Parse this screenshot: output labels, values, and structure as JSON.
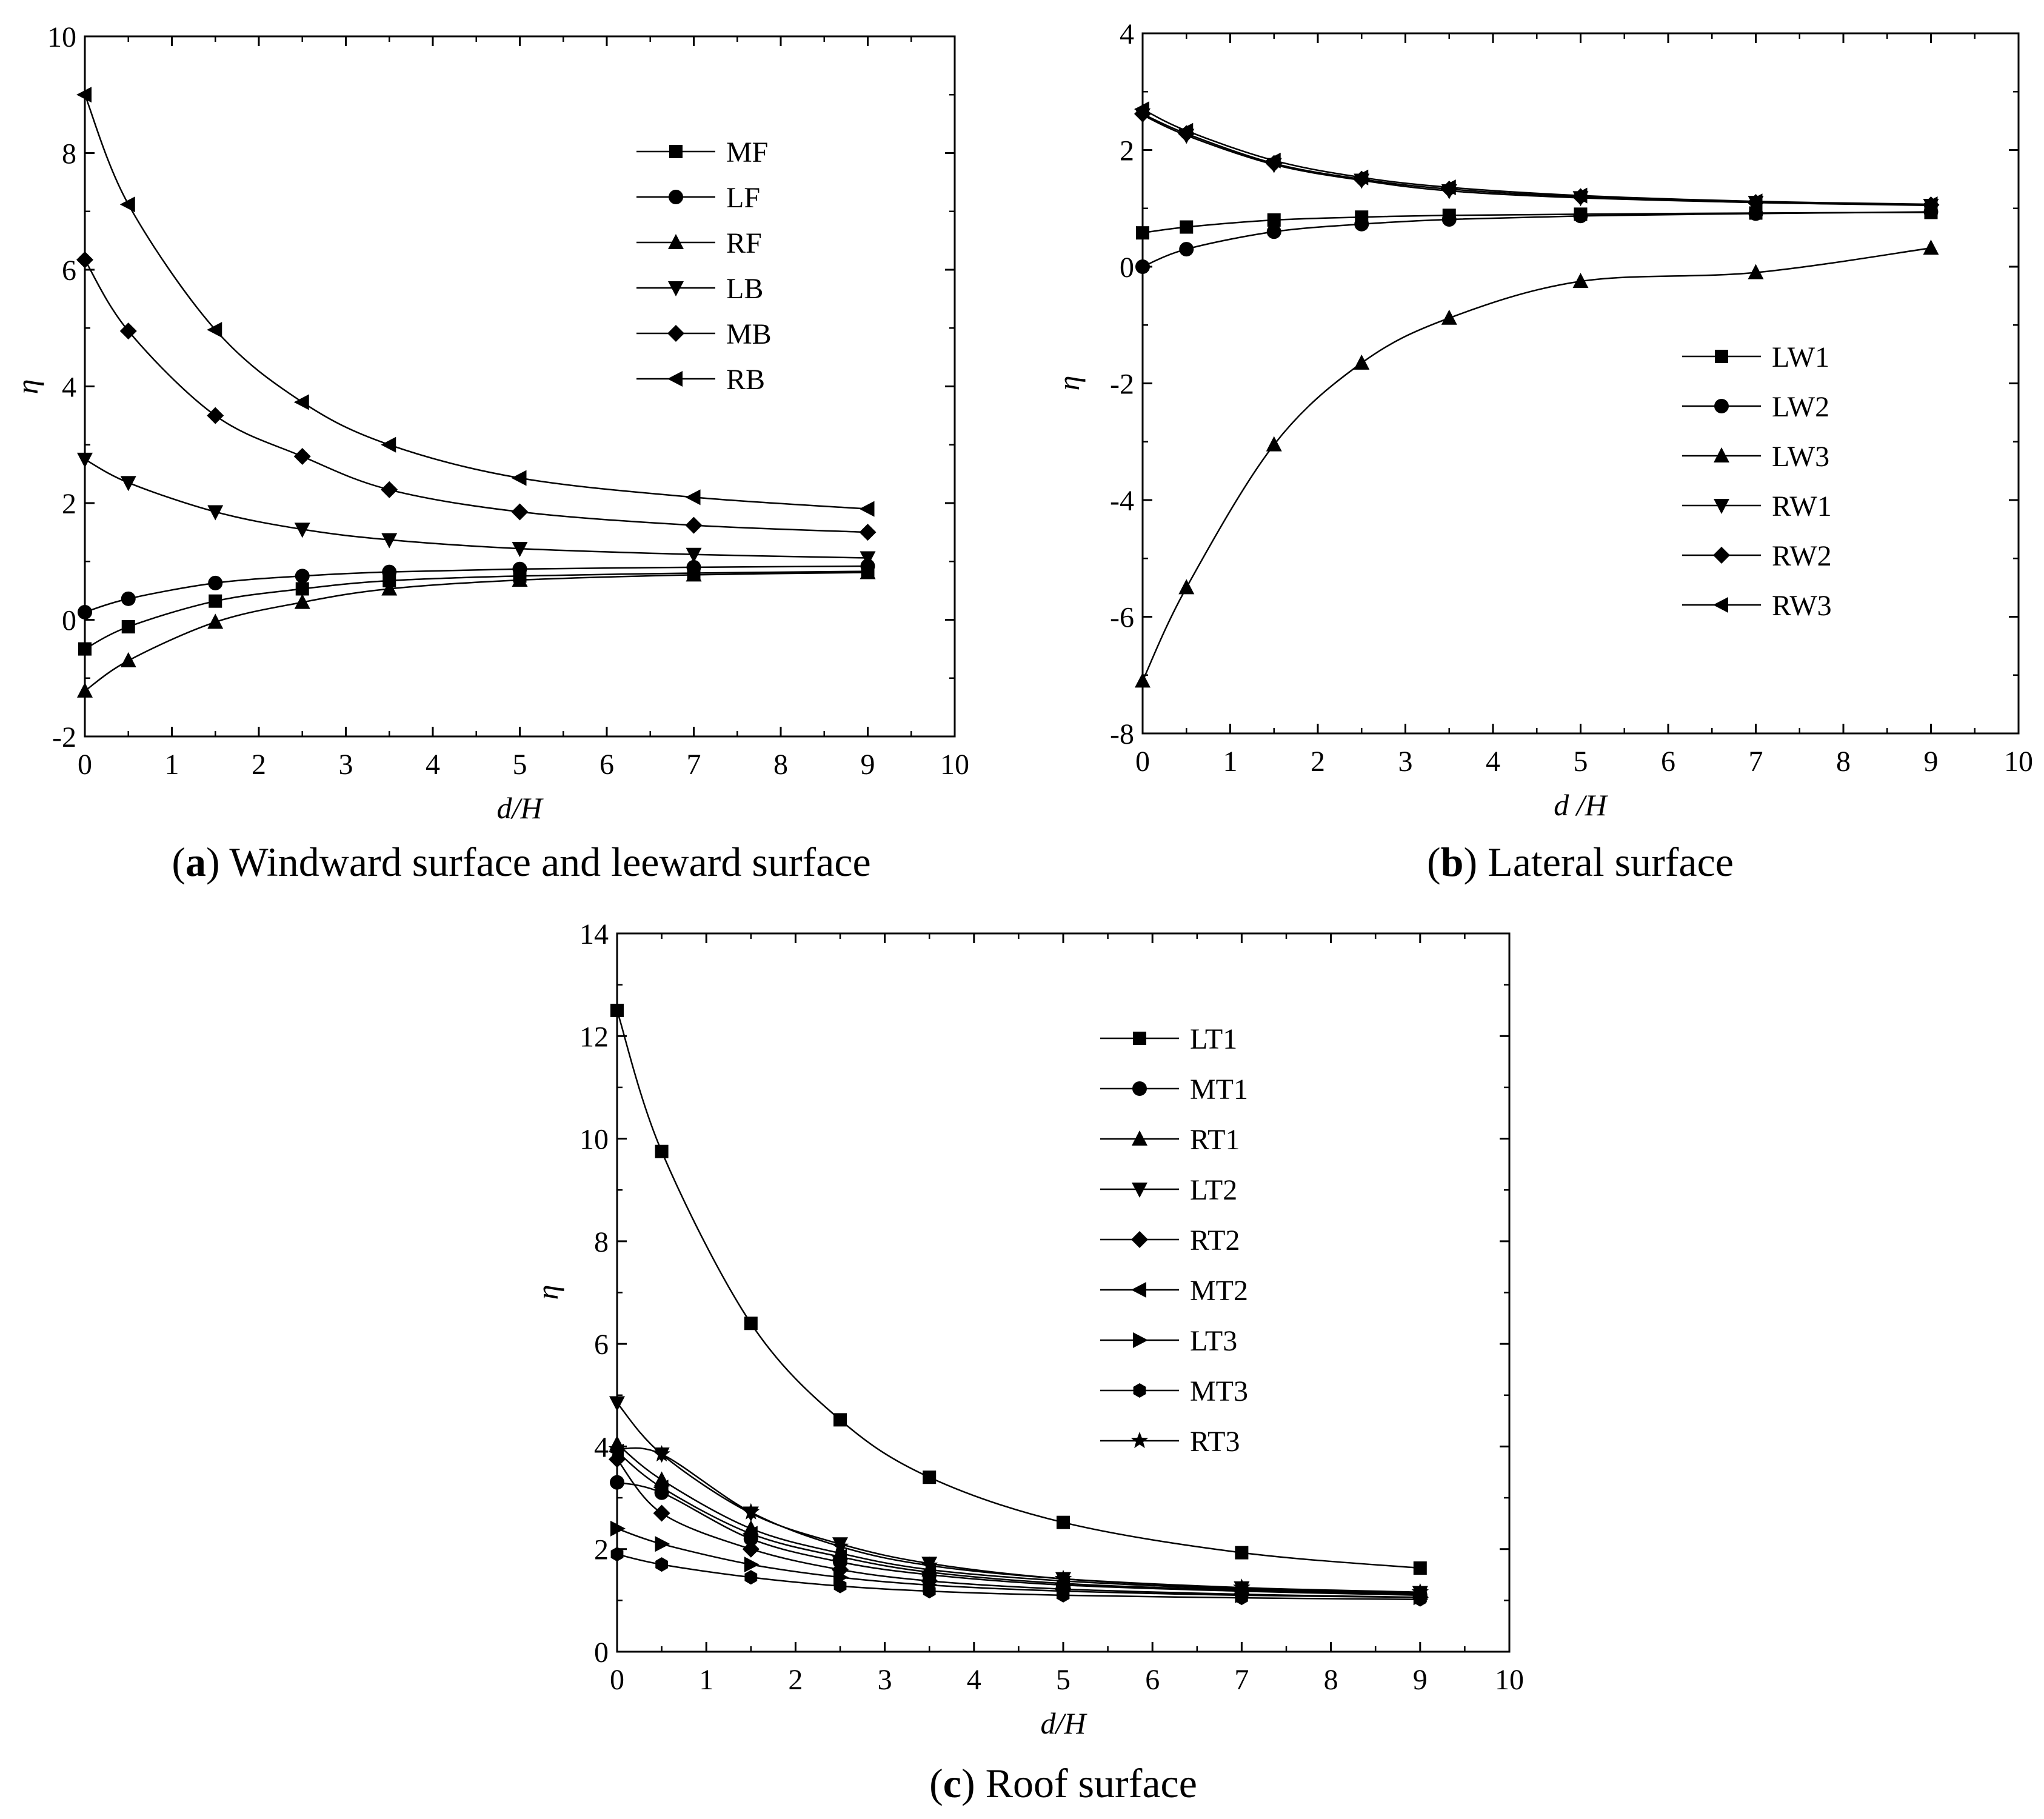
{
  "chart_data": [
    {
      "type": "line",
      "panel": "a",
      "caption_letter": "a",
      "caption_text": "Windward surface and leeward surface",
      "xlabel": "d/H",
      "ylabel": "η",
      "xlim": [
        0,
        10
      ],
      "ylim": [
        -2,
        10
      ],
      "xticks": [
        0,
        1,
        2,
        3,
        4,
        5,
        6,
        7,
        8,
        9,
        10
      ],
      "yticks": [
        -2,
        0,
        2,
        4,
        6,
        8,
        10
      ],
      "legend_position": "top-right",
      "x": [
        0,
        0.5,
        1.5,
        2.5,
        3.5,
        5,
        7,
        9
      ],
      "series": [
        {
          "name": "MF",
          "marker": "square",
          "values": [
            -0.5,
            -0.12,
            0.32,
            0.53,
            0.67,
            0.75,
            0.8,
            0.83
          ]
        },
        {
          "name": "LF",
          "marker": "circle",
          "values": [
            0.13,
            0.36,
            0.63,
            0.75,
            0.82,
            0.87,
            0.9,
            0.92
          ]
        },
        {
          "name": "RF",
          "marker": "triangle-up",
          "values": [
            -1.22,
            -0.7,
            -0.04,
            0.3,
            0.53,
            0.68,
            0.77,
            0.81
          ]
        },
        {
          "name": "LB",
          "marker": "triangle-down",
          "values": [
            2.75,
            2.35,
            1.85,
            1.55,
            1.37,
            1.22,
            1.12,
            1.06
          ]
        },
        {
          "name": "MB",
          "marker": "diamond",
          "values": [
            6.17,
            4.95,
            3.5,
            2.8,
            2.23,
            1.85,
            1.62,
            1.5
          ]
        },
        {
          "name": "RB",
          "marker": "triangle-left",
          "values": [
            9.0,
            7.12,
            4.97,
            3.73,
            3.0,
            2.43,
            2.1,
            1.9
          ]
        }
      ]
    },
    {
      "type": "line",
      "panel": "b",
      "caption_letter": "b",
      "caption_text": "Lateral surface",
      "xlabel": "d /H",
      "ylabel": "η",
      "xlim": [
        0,
        10
      ],
      "ylim": [
        -8,
        4
      ],
      "xticks": [
        0,
        1,
        2,
        3,
        4,
        5,
        6,
        7,
        8,
        9,
        10
      ],
      "yticks": [
        -8,
        -6,
        -4,
        -2,
        0,
        2,
        4
      ],
      "legend_position": "lower-right",
      "x": [
        0,
        0.5,
        1.5,
        2.5,
        3.5,
        5,
        7,
        9
      ],
      "series": [
        {
          "name": "LW1",
          "marker": "square",
          "values": [
            0.58,
            0.68,
            0.8,
            0.85,
            0.88,
            0.9,
            0.92,
            0.93
          ]
        },
        {
          "name": "LW2",
          "marker": "circle",
          "values": [
            0.0,
            0.3,
            0.6,
            0.73,
            0.81,
            0.87,
            0.91,
            0.94
          ]
        },
        {
          "name": "LW3",
          "marker": "triangle-up",
          "values": [
            -7.1,
            -5.5,
            -3.05,
            -1.65,
            -0.88,
            -0.25,
            -0.1,
            0.32
          ]
        },
        {
          "name": "RW1",
          "marker": "triangle-down",
          "values": [
            2.6,
            2.25,
            1.75,
            1.48,
            1.3,
            1.18,
            1.1,
            1.05
          ]
        },
        {
          "name": "RW2",
          "marker": "diamond",
          "values": [
            2.62,
            2.28,
            1.77,
            1.5,
            1.33,
            1.2,
            1.1,
            1.06
          ]
        },
        {
          "name": "RW3",
          "marker": "triangle-left",
          "values": [
            2.7,
            2.33,
            1.82,
            1.53,
            1.36,
            1.22,
            1.12,
            1.07
          ]
        }
      ]
    },
    {
      "type": "line",
      "panel": "c",
      "caption_letter": "c",
      "caption_text": "Roof surface",
      "xlabel": "d/H",
      "ylabel": "η",
      "xlim": [
        0,
        10
      ],
      "ylim": [
        0,
        14
      ],
      "xticks": [
        0,
        1,
        2,
        3,
        4,
        5,
        6,
        7,
        8,
        9,
        10
      ],
      "yticks": [
        0,
        2,
        4,
        6,
        8,
        10,
        12,
        14
      ],
      "legend_position": "top-right",
      "x": [
        0,
        0.5,
        1.5,
        2.5,
        3.5,
        5,
        7,
        9
      ],
      "series": [
        {
          "name": "LT1",
          "marker": "square",
          "values": [
            12.5,
            9.75,
            6.4,
            4.52,
            3.4,
            2.52,
            1.93,
            1.63
          ]
        },
        {
          "name": "MT1",
          "marker": "circle",
          "values": [
            3.3,
            3.1,
            2.2,
            1.75,
            1.5,
            1.3,
            1.18,
            1.1
          ]
        },
        {
          "name": "RT1",
          "marker": "triangle-up",
          "values": [
            4.05,
            3.35,
            2.4,
            1.92,
            1.6,
            1.38,
            1.22,
            1.14
          ]
        },
        {
          "name": "LT2",
          "marker": "triangle-down",
          "values": [
            4.85,
            3.85,
            2.7,
            2.1,
            1.72,
            1.42,
            1.24,
            1.15
          ]
        },
        {
          "name": "RT2",
          "marker": "diamond",
          "values": [
            3.75,
            2.7,
            2.0,
            1.6,
            1.38,
            1.22,
            1.12,
            1.06
          ]
        },
        {
          "name": "MT2",
          "marker": "triangle-left",
          "values": [
            3.9,
            3.2,
            2.3,
            1.85,
            1.55,
            1.33,
            1.2,
            1.12
          ]
        },
        {
          "name": "LT3",
          "marker": "triangle-right",
          "values": [
            2.4,
            2.1,
            1.7,
            1.45,
            1.3,
            1.18,
            1.1,
            1.06
          ]
        },
        {
          "name": "MT3",
          "marker": "hexagon",
          "values": [
            1.9,
            1.7,
            1.45,
            1.28,
            1.18,
            1.1,
            1.05,
            1.02
          ]
        },
        {
          "name": "RT3",
          "marker": "star",
          "values": [
            3.95,
            3.85,
            2.72,
            2.05,
            1.68,
            1.42,
            1.25,
            1.16
          ]
        }
      ]
    }
  ]
}
